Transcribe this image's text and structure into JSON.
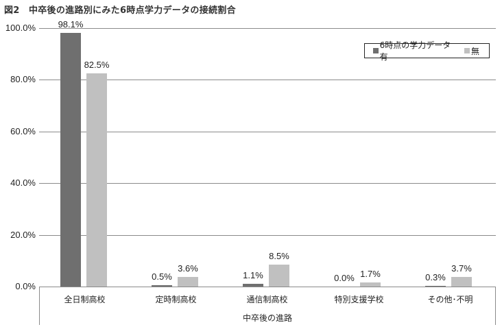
{
  "title": "図2　中卒後の進路別にみた6時点学力データの接続割合",
  "chart_data": {
    "type": "bar",
    "title": "図2　中卒後の進路別にみた6時点学力データの接続割合",
    "xlabel": "中卒後の進路",
    "ylabel": "",
    "ylim": [
      0,
      100
    ],
    "yticks": [
      "0.0%",
      "20.0%",
      "40.0%",
      "60.0%",
      "80.0%",
      "100.0%"
    ],
    "grid": true,
    "legend_position": "top-right",
    "categories": [
      "全日制高校",
      "定時制高校",
      "通信制高校",
      "特別支援学校",
      "その他･不明"
    ],
    "series": [
      {
        "name": "6時点の学力データ有",
        "color": "#6f6f6f",
        "values": [
          98.1,
          0.5,
          1.1,
          0.0,
          0.3
        ],
        "labels": [
          "98.1%",
          "0.5%",
          "1.1%",
          "0.0%",
          "0.3%"
        ]
      },
      {
        "name": "無",
        "color": "#c0c0c0",
        "values": [
          82.5,
          3.6,
          8.5,
          1.7,
          3.7
        ],
        "labels": [
          "82.5%",
          "3.6%",
          "8.5%",
          "1.7%",
          "3.7%"
        ]
      }
    ]
  }
}
